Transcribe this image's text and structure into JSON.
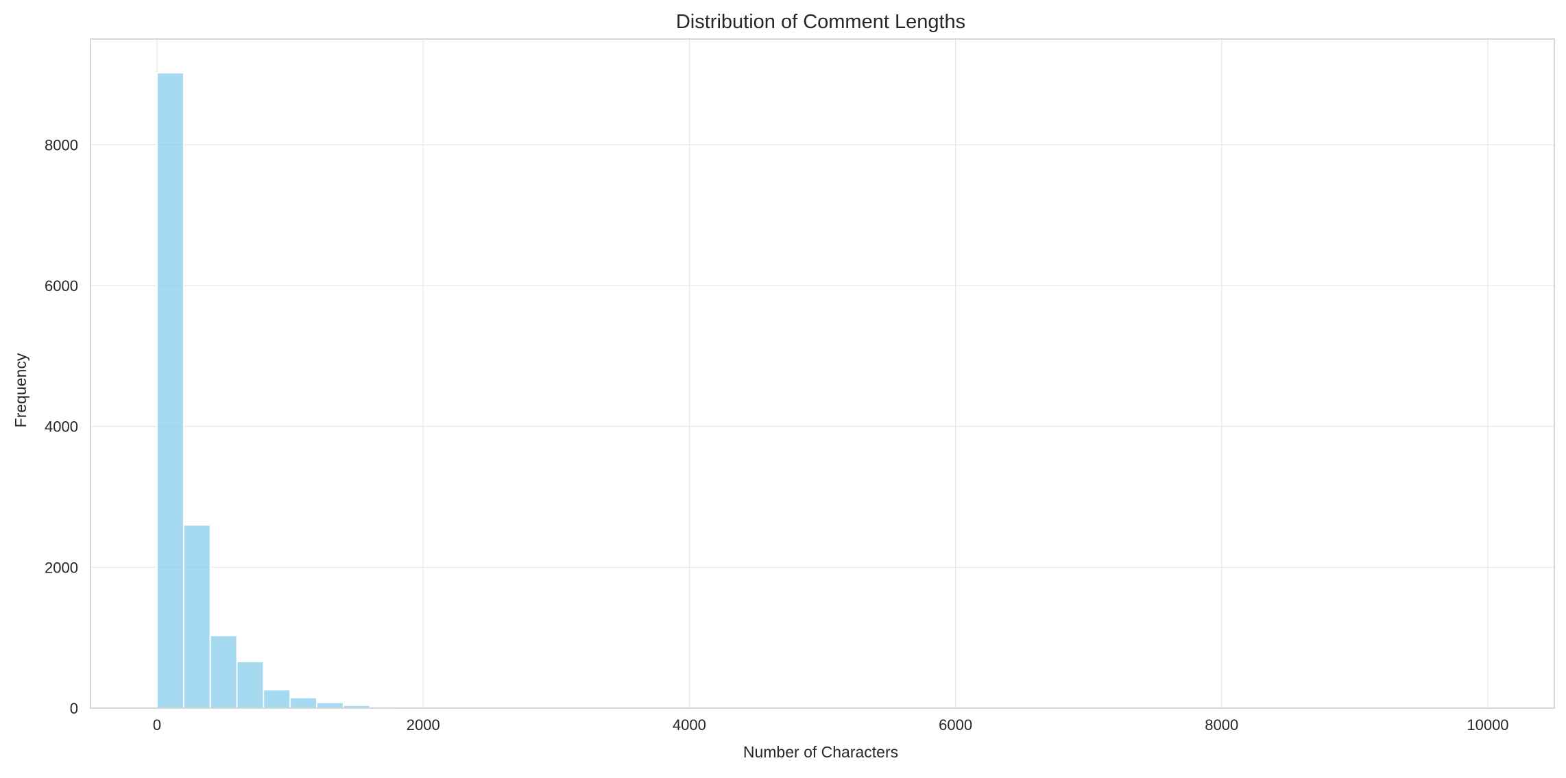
{
  "chart_data": {
    "type": "histogram",
    "title": "Distribution of Comment Lengths",
    "xlabel": "Number of Characters",
    "ylabel": "Frequency",
    "xlim": [
      -500,
      10500
    ],
    "ylim": [
      0,
      9500
    ],
    "x_ticks": [
      0,
      2000,
      4000,
      6000,
      8000,
      10000
    ],
    "y_ticks": [
      0,
      2000,
      4000,
      6000,
      8000
    ],
    "bin_width": 200,
    "bin_start": 0,
    "values": [
      9020,
      2600,
      1030,
      660,
      260,
      150,
      80,
      40,
      20,
      10,
      5,
      3,
      2,
      2,
      1,
      1,
      1,
      1,
      1,
      0,
      0,
      0,
      0,
      0,
      0,
      0,
      0,
      0,
      0,
      0,
      0,
      0,
      0,
      0,
      0,
      0,
      0,
      0,
      0,
      0,
      0,
      0,
      0,
      0,
      0,
      0,
      0,
      0,
      0,
      1
    ],
    "bar_color": "#87ceeb",
    "grid": true,
    "legend": "none"
  }
}
